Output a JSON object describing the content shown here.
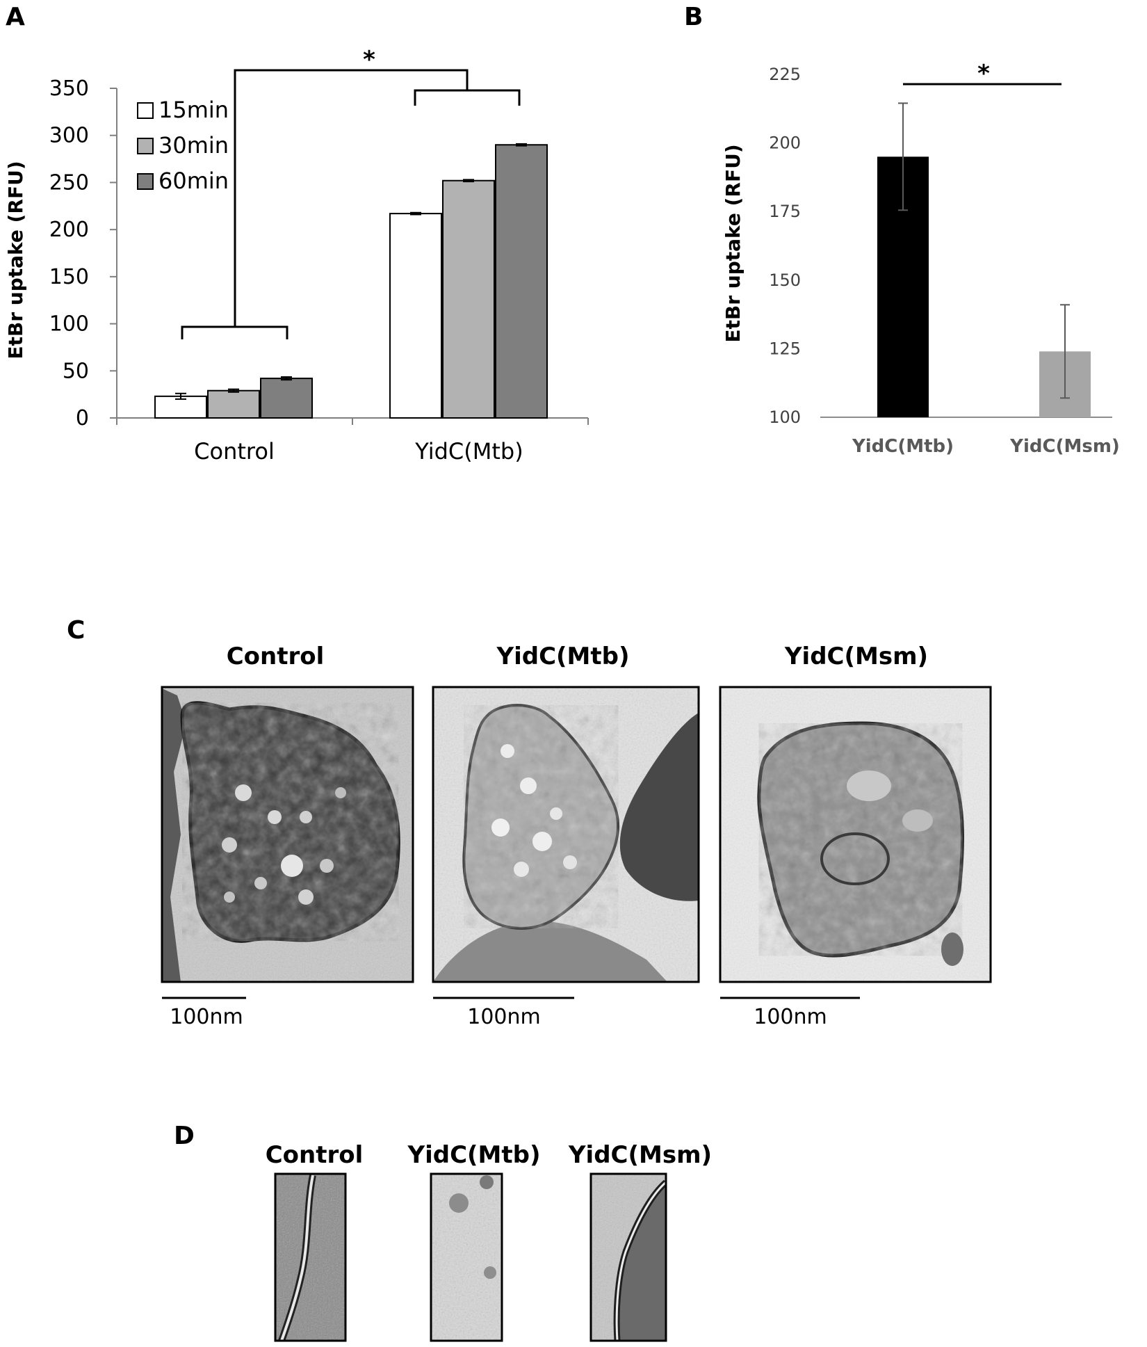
{
  "panel_labels": {
    "a": "A",
    "b": "B",
    "c": "C",
    "d": "D"
  },
  "chart_data": [
    {
      "type": "bar",
      "panel": "A",
      "categories": [
        "Control",
        "YidC(Mtb)"
      ],
      "series": [
        {
          "name": "15min",
          "values": [
            23,
            217
          ],
          "errors": [
            3,
            1
          ],
          "color": "#ffffff"
        },
        {
          "name": "30min",
          "values": [
            29,
            252
          ],
          "errors": [
            1.5,
            1
          ],
          "color": "#b2b2b2"
        },
        {
          "name": "60min",
          "values": [
            42,
            290
          ],
          "errors": [
            1.5,
            1
          ],
          "color": "#7f7f7f"
        }
      ],
      "ylabel": "EtBr uptake (RFU)",
      "ylim": [
        0,
        350
      ],
      "yticks": [
        "0",
        "50",
        "100",
        "150",
        "200",
        "250",
        "300",
        "350"
      ],
      "legend_position": "top-left",
      "significance": "*"
    },
    {
      "type": "bar",
      "panel": "B",
      "categories": [
        "YidC(Mtb)",
        "YidC(Msm)"
      ],
      "values": [
        195,
        124
      ],
      "errors": [
        19.5,
        17
      ],
      "colors": [
        "#000000",
        "#a6a6a6"
      ],
      "ylabel": "EtBr uptake (RFU)",
      "ylim": [
        100,
        225
      ],
      "yticks": [
        "100",
        "125",
        "150",
        "175",
        "200",
        "225"
      ],
      "significance": "*"
    }
  ],
  "panel_c": {
    "titles": [
      "Control",
      "YidC(Mtb)",
      "YidC(Msm)"
    ],
    "scale_labels": [
      "100nm",
      "100nm",
      "100nm"
    ]
  },
  "panel_d": {
    "titles": [
      "Control",
      "YidC(Mtb)",
      "YidC(Msm)"
    ]
  }
}
